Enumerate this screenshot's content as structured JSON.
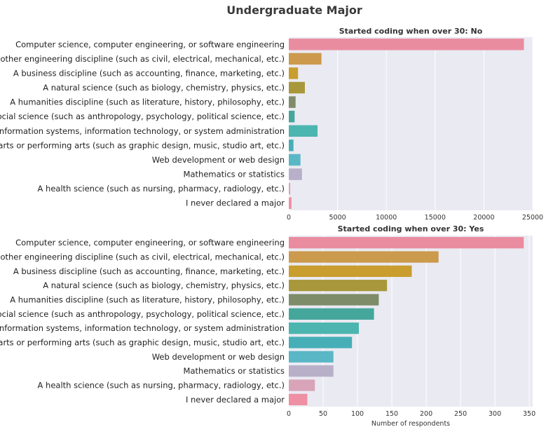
{
  "figure": {
    "title": "Undergraduate Major"
  },
  "chart_data": [
    {
      "type": "bar",
      "orientation": "horizontal",
      "title": "Started coding when over 30: No",
      "xlabel": "",
      "ylabel": "",
      "xlim": [
        0,
        25000
      ],
      "xticks": [
        0,
        5000,
        10000,
        15000,
        20000,
        25000
      ],
      "grid": true,
      "categories": [
        "Computer science, computer engineering, or software engineering",
        "Another engineering discipline (such as civil, electrical, mechanical, etc.)",
        "A business discipline (such as accounting, finance, marketing, etc.)",
        "A natural science (such as biology, chemistry, physics, etc.)",
        "A humanities discipline (such as literature, history, philosophy, etc.)",
        "A social science (such as anthropology, psychology, political science, etc.)",
        "Information systems, information technology, or system administration",
        "Fine arts or performing arts (such as graphic design, music, studio art, etc.)",
        "Web development or web design",
        "Mathematics or statistics",
        "A health science (such as nursing, pharmacy, radiology, etc.)",
        "I never declared a major"
      ],
      "values": [
        24100,
        3350,
        950,
        1650,
        700,
        600,
        2950,
        480,
        1200,
        1350,
        150,
        280
      ]
    },
    {
      "type": "bar",
      "orientation": "horizontal",
      "title": "Started coding when over 30: Yes",
      "xlabel": "Number of respondents",
      "ylabel": "",
      "xlim": [
        0,
        355
      ],
      "xticks": [
        0,
        50,
        100,
        150,
        200,
        250,
        300,
        350
      ],
      "grid": true,
      "categories": [
        "Computer science, computer engineering, or software engineering",
        "Another engineering discipline (such as civil, electrical, mechanical, etc.)",
        "A business discipline (such as accounting, finance, marketing, etc.)",
        "A natural science (such as biology, chemistry, physics, etc.)",
        "A humanities discipline (such as literature, history, philosophy, etc.)",
        "A social science (such as anthropology, psychology, political science, etc.)",
        "Information systems, information technology, or system administration",
        "Fine arts or performing arts (such as graphic design, music, studio art, etc.)",
        "Web development or web design",
        "Mathematics or statistics",
        "A health science (such as nursing, pharmacy, radiology, etc.)",
        "I never declared a major"
      ],
      "values": [
        342,
        218,
        179,
        143,
        131,
        124,
        102,
        92,
        65,
        65,
        38,
        27
      ]
    }
  ],
  "colors": {
    "bars": [
      "#ea8ca0",
      "#cc9a4c",
      "#c99d2e",
      "#a8983b",
      "#7f8c6a",
      "#45a69c",
      "#4cb5b0",
      "#46aeb7",
      "#5ab7c6",
      "#b8b0c9",
      "#d9a4b8",
      "#ee8fa4"
    ],
    "plot_background": "#eaeaf2",
    "grid": "#ffffff"
  }
}
